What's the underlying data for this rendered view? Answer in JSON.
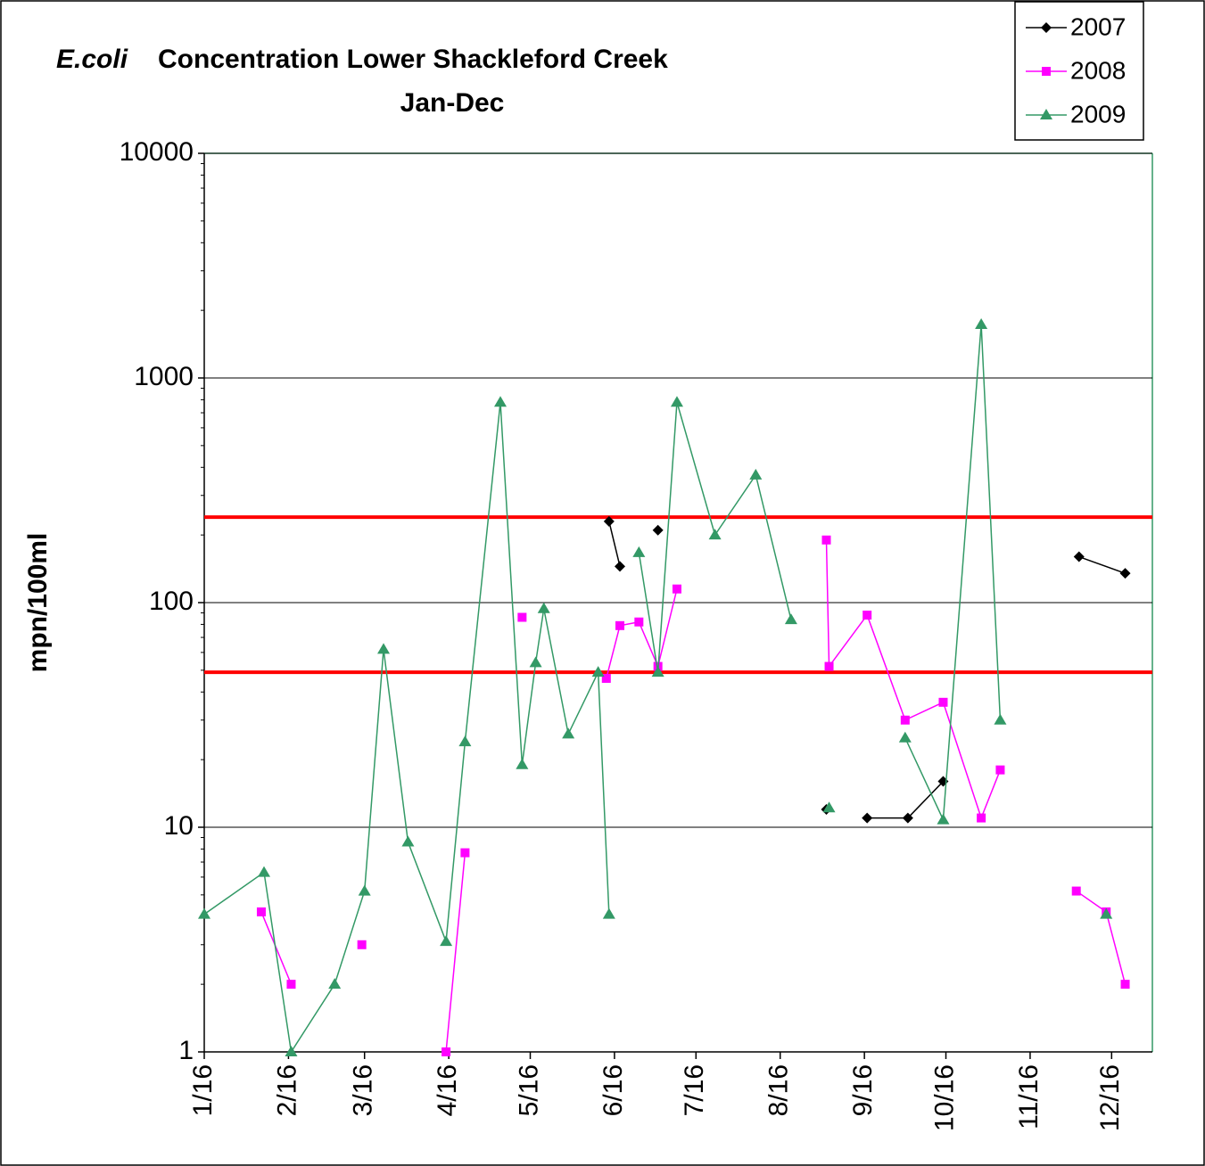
{
  "chart_data": {
    "type": "line",
    "title_italic": "E.coli",
    "title": "Concentration Lower Shackleford Creek",
    "subtitle": "Jan-Dec",
    "ylabel": "mpn/100ml",
    "log_scale": true,
    "grid": true,
    "legend": "top-right",
    "ylim": [
      1,
      10000
    ],
    "yticks": [
      1,
      10,
      100,
      1000,
      10000
    ],
    "xlim": [
      "1/16",
      "12/31"
    ],
    "xticks": [
      "1/16",
      "2/16",
      "3/16",
      "4/16",
      "5/16",
      "6/16",
      "7/16",
      "8/16",
      "9/16",
      "10/16",
      "11/16",
      "12/16"
    ],
    "reference_lines": [
      {
        "value": 240,
        "color": "#ff0000"
      },
      {
        "value": 49,
        "color": "#ff0000"
      }
    ],
    "series": [
      {
        "name": "2007",
        "color": "#000000",
        "marker": "diamond",
        "x": [
          "6/14",
          "6/18",
          null,
          "7/2",
          null,
          "9/2",
          null,
          "9/17",
          "10/2",
          "10/15",
          null,
          "12/4",
          "12/21"
        ],
        "values": [
          230,
          145,
          null,
          210,
          null,
          12,
          null,
          11,
          11,
          16,
          null,
          160,
          135
        ]
      },
      {
        "name": "2008",
        "color": "#ff00ff",
        "marker": "square",
        "x": [
          "2/6",
          "2/17",
          null,
          "3/15",
          null,
          "4/15",
          "4/22",
          null,
          "5/13",
          null,
          "6/13",
          "6/18",
          "6/25",
          "7/2",
          "7/9",
          null,
          "9/2",
          "9/3",
          "9/17",
          "10/1",
          "10/15",
          "10/29",
          "11/5",
          null,
          "12/3",
          "12/14",
          "12/21"
        ],
        "values": [
          4.2,
          2,
          null,
          3,
          null,
          1,
          7.7,
          null,
          86,
          null,
          46,
          79,
          82,
          52,
          115,
          null,
          190,
          52,
          88,
          30,
          36,
          11,
          18,
          null,
          5.2,
          4.2,
          2
        ]
      },
      {
        "name": "2009",
        "color": "#339966",
        "marker": "triangle",
        "x": [
          "1/16",
          "2/7",
          "2/17",
          "3/5",
          "3/16",
          "3/23",
          "4/1",
          "4/15",
          "4/22",
          "5/5",
          "5/13",
          "5/18",
          "5/21",
          "5/30",
          "6/10",
          "6/14",
          null,
          "6/25",
          "7/2",
          "7/9",
          "7/23",
          "8/7",
          "8/20",
          null,
          "9/3",
          null,
          "10/1",
          "10/15",
          "10/29",
          "11/5",
          null,
          "12/14"
        ],
        "values": [
          4.1,
          6.3,
          1,
          2,
          5.2,
          62,
          8.6,
          3.1,
          24,
          780,
          19,
          54,
          94,
          26,
          49,
          4.1,
          null,
          167,
          49,
          780,
          200,
          370,
          84,
          null,
          12.2,
          null,
          25,
          10.8,
          1730,
          30,
          null,
          4.1
        ]
      }
    ]
  }
}
